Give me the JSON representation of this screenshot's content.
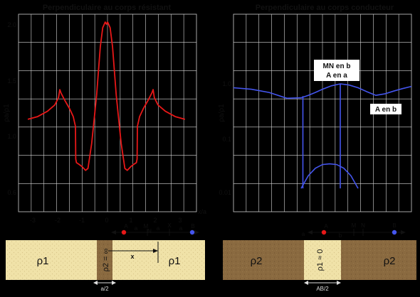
{
  "panels": [
    {
      "title": "Perpendiculaire au corps résistant",
      "ylabel": "ρa/ρ1",
      "yticks": [
        "2.0",
        "1.5",
        "1.0",
        "0.6"
      ],
      "xticks": [
        "-3",
        "-2",
        "-1",
        "0",
        "1",
        "2",
        "3"
      ],
      "x_end_label": "x/a",
      "sounding": {
        "A": "A",
        "M": "M",
        "N": "N",
        "B": "B",
        "a1": "a",
        "a2": "a",
        "a3": "a",
        "x": "X"
      },
      "distance_label": "x",
      "layers": {
        "host_left": "ρ1",
        "host_right": "ρ1",
        "dike": "ρ2 = ∞"
      },
      "dike_width_label": "a/2",
      "colors": {
        "curve": "#e81818",
        "sediment": "#f0e2a8",
        "dike": "#8a6a40"
      }
    },
    {
      "title": "Perpendiculaire au corps conducteur",
      "ylabel": "ρa/ρ1",
      "yticks": [
        "1.0",
        "0.1",
        "0.01"
      ],
      "annotations": {
        "mn_in_b": "MN en b",
        "a_in_a": "A en a",
        "a_in_b": "A en b"
      },
      "sounding": {
        "a": "a",
        "b": "b",
        "A": "A",
        "M": "M",
        "N": "N",
        "B": "B"
      },
      "layers": {
        "host_left": "ρ2",
        "host_right": "ρ2",
        "dike": "ρ1 ≈ 0"
      },
      "dike_width_label": "AB/2",
      "colors": {
        "curve": "#4455ee",
        "sediment": "#f0e2a8",
        "host": "#8a6a40"
      }
    }
  ],
  "chart_data": [
    {
      "type": "line",
      "title": "Perpendiculaire au corps résistant",
      "xlabel": "x/a",
      "ylabel": "ρa/ρ1",
      "xlim": [
        -3.4,
        3.4
      ],
      "ylim": [
        0.6,
        2.1
      ],
      "y_scale": "log",
      "grid": true,
      "series": [
        {
          "x": [
            -3.2,
            -2.8,
            -2.4,
            -2.1,
            -1.95,
            -1.9,
            -1.85,
            -1.7,
            -1.5,
            -1.35,
            -1.26,
            -1.25,
            -1.22,
            -1.1,
            -1.0,
            -0.85,
            -0.75,
            -0.6,
            -0.4,
            -0.25,
            -0.15,
            -0.05,
            0.0,
            0.05,
            0.15,
            0.25,
            0.4,
            0.6,
            0.75,
            0.85,
            1.0,
            1.1,
            1.22,
            1.25,
            1.26,
            1.35,
            1.5,
            1.7,
            1.85,
            1.9,
            1.95,
            2.1,
            2.4,
            2.8,
            3.2
          ],
          "y": [
            1.01,
            1.03,
            1.07,
            1.12,
            1.18,
            1.25,
            1.22,
            1.16,
            1.09,
            1.03,
            0.96,
            0.76,
            0.74,
            0.73,
            0.72,
            0.7,
            0.71,
            0.85,
            1.2,
            1.7,
            1.95,
            2.03,
            2.0,
            2.03,
            1.95,
            1.7,
            1.2,
            0.85,
            0.71,
            0.7,
            0.72,
            0.73,
            0.74,
            0.76,
            0.96,
            1.03,
            1.09,
            1.16,
            1.22,
            1.25,
            1.18,
            1.12,
            1.07,
            1.03,
            1.01
          ]
        }
      ]
    },
    {
      "type": "line",
      "title": "Perpendiculaire au corps conducteur",
      "ylabel": "ρa/ρ1",
      "ylim": [
        0.005,
        2.0
      ],
      "y_scale": "log",
      "grid": true,
      "series": [
        {
          "x": [
            0,
            0.1,
            0.2,
            0.3,
            0.38,
            0.42,
            0.46,
            0.5,
            0.55,
            0.6,
            0.65,
            0.7,
            0.75,
            0.8,
            0.85,
            0.9,
            0.95,
            1.0
          ],
          "y": [
            0.85,
            0.8,
            0.7,
            0.55,
            0.56,
            0.62,
            0.7,
            0.8,
            0.92,
            1.0,
            0.95,
            0.85,
            0.72,
            0.62,
            0.66,
            0.74,
            0.82,
            0.9
          ]
        },
        {
          "x": [
            0.38,
            0.42,
            0.46,
            0.5,
            0.54,
            0.58,
            0.62,
            0.66,
            0.7
          ],
          "y": [
            0.013,
            0.022,
            0.03,
            0.035,
            0.036,
            0.035,
            0.03,
            0.022,
            0.013
          ]
        }
      ]
    }
  ]
}
